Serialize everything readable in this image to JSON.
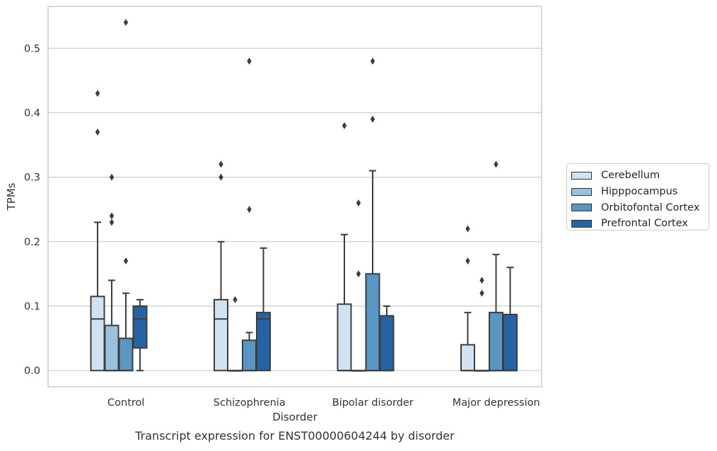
{
  "chart_data": {
    "type": "box",
    "caption": "Transcript expression for ENST00000604244 by disorder",
    "xlabel": "Disorder",
    "ylabel": "TPMs",
    "ylim": [
      -0.025,
      0.565
    ],
    "yticks": [
      "0.0",
      "0.1",
      "0.2",
      "0.3",
      "0.4",
      "0.5"
    ],
    "grid": "horizontal",
    "legend_position": "right",
    "categories": [
      "Control",
      "Schizophrenia",
      "Bipolar disorder",
      "Major depression"
    ],
    "series": [
      {
        "name": "Cerebellum",
        "color": "#d1e2f0",
        "boxes": [
          {
            "q1": 0.0,
            "median": 0.08,
            "q3": 0.115,
            "whisker_low": 0.0,
            "whisker_high": 0.23,
            "outliers": [
              0.43,
              0.37
            ]
          },
          {
            "q1": 0.0,
            "median": 0.08,
            "q3": 0.11,
            "whisker_low": 0.0,
            "whisker_high": 0.2,
            "outliers": [
              0.32,
              0.3
            ]
          },
          {
            "q1": 0.0,
            "median": 0.0,
            "q3": 0.103,
            "whisker_low": 0.0,
            "whisker_high": 0.211,
            "outliers": [
              0.38
            ]
          },
          {
            "q1": 0.0,
            "median": 0.0,
            "q3": 0.04,
            "whisker_low": 0.0,
            "whisker_high": 0.09,
            "outliers": [
              0.22,
              0.17
            ]
          }
        ]
      },
      {
        "name": "Hipppocampus",
        "color": "#9ac2dd",
        "boxes": [
          {
            "q1": 0.0,
            "median": 0.0,
            "q3": 0.07,
            "whisker_low": 0.0,
            "whisker_high": 0.14,
            "outliers": [
              0.3,
              0.24,
              0.23
            ]
          },
          {
            "q1": 0.0,
            "median": 0.0,
            "q3": 0.0,
            "whisker_low": 0.0,
            "whisker_high": 0.0,
            "outliers": [
              0.11
            ]
          },
          {
            "q1": 0.0,
            "median": 0.0,
            "q3": 0.0,
            "whisker_low": 0.0,
            "whisker_high": 0.0,
            "outliers": [
              0.26,
              0.15
            ]
          },
          {
            "q1": 0.0,
            "median": 0.0,
            "q3": 0.0,
            "whisker_low": 0.0,
            "whisker_high": 0.0,
            "outliers": [
              0.14,
              0.12
            ]
          }
        ]
      },
      {
        "name": "Orbitofontal Cortex",
        "color": "#5996c3",
        "boxes": [
          {
            "q1": 0.0,
            "median": 0.0,
            "q3": 0.05,
            "whisker_low": 0.0,
            "whisker_high": 0.12,
            "outliers": [
              0.54,
              0.17
            ]
          },
          {
            "q1": 0.0,
            "median": 0.0,
            "q3": 0.047,
            "whisker_low": 0.0,
            "whisker_high": 0.059,
            "outliers": [
              0.48,
              0.25
            ]
          },
          {
            "q1": 0.0,
            "median": 0.0,
            "q3": 0.15,
            "whisker_low": 0.0,
            "whisker_high": 0.31,
            "outliers": [
              0.48,
              0.39
            ]
          },
          {
            "q1": 0.0,
            "median": 0.0,
            "q3": 0.09,
            "whisker_low": 0.0,
            "whisker_high": 0.18,
            "outliers": [
              0.32
            ]
          }
        ]
      },
      {
        "name": "Prefrontal Cortex",
        "color": "#2563a4",
        "boxes": [
          {
            "q1": 0.035,
            "median": 0.08,
            "q3": 0.1,
            "whisker_low": 0.0,
            "whisker_high": 0.11,
            "outliers": []
          },
          {
            "q1": 0.0,
            "median": 0.08,
            "q3": 0.09,
            "whisker_low": 0.0,
            "whisker_high": 0.19,
            "outliers": []
          },
          {
            "q1": 0.0,
            "median": 0.0,
            "q3": 0.085,
            "whisker_low": 0.0,
            "whisker_high": 0.1,
            "outliers": []
          },
          {
            "q1": 0.0,
            "median": 0.0,
            "q3": 0.087,
            "whisker_low": 0.0,
            "whisker_high": 0.16,
            "outliers": []
          }
        ]
      }
    ]
  }
}
